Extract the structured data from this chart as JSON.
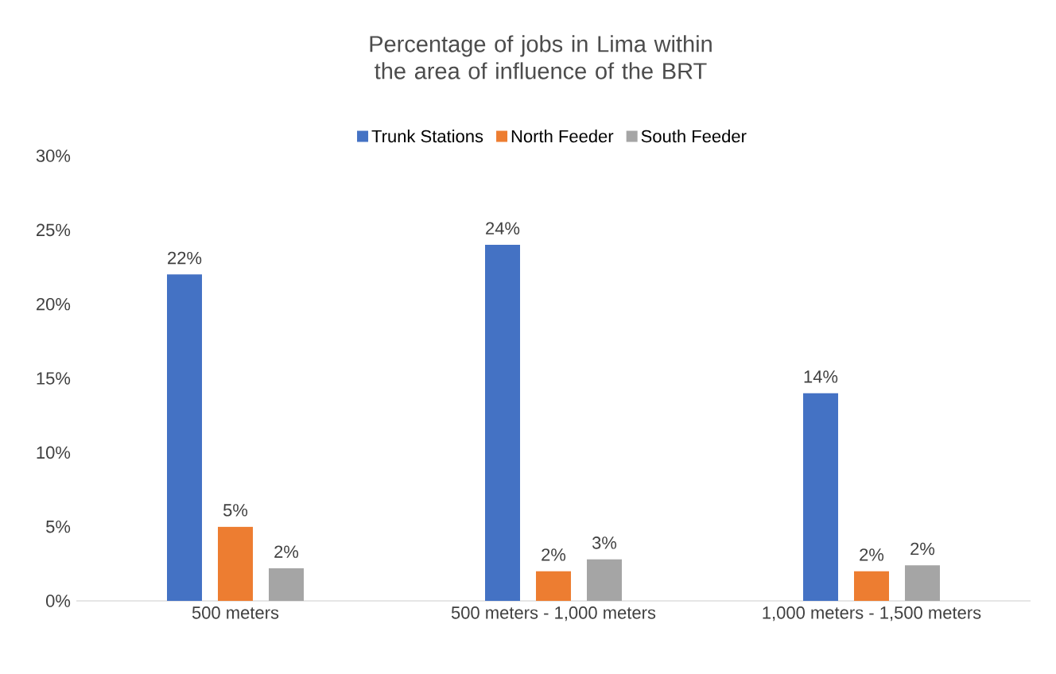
{
  "chart_data": {
    "type": "bar",
    "title": "Percentage of jobs in Lima within the area of influence of the BRT",
    "categories": [
      "500 meters",
      "500 meters - 1,000 meters",
      "1,000 meters - 1,500 meters"
    ],
    "series": [
      {
        "name": "Trunk Stations",
        "color": "#4472c4",
        "values": [
          22,
          24,
          14
        ],
        "value_labels": [
          "22%",
          "24%",
          "14%"
        ]
      },
      {
        "name": "North Feeder",
        "color": "#ed7d31",
        "values": [
          5,
          2,
          2
        ],
        "value_labels": [
          "5%",
          "2%",
          "2%"
        ]
      },
      {
        "name": "South Feeder",
        "color": "#a5a5a5",
        "values": [
          2.2,
          2.8,
          2.4
        ],
        "value_labels": [
          "2%",
          "3%",
          "2%"
        ]
      }
    ],
    "ylim": [
      0,
      30
    ],
    "yticks": [
      {
        "value": 0,
        "label": "0%"
      },
      {
        "value": 5,
        "label": "5%"
      },
      {
        "value": 10,
        "label": "10%"
      },
      {
        "value": 15,
        "label": "15%"
      },
      {
        "value": 20,
        "label": "20%"
      },
      {
        "value": 25,
        "label": "25%"
      },
      {
        "value": 30,
        "label": "30%"
      }
    ],
    "grid": false,
    "legend": "top"
  }
}
